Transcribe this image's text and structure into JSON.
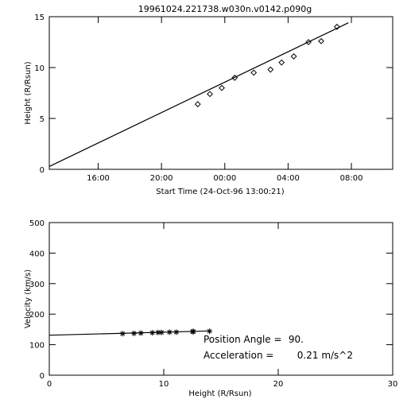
{
  "chart_data": [
    {
      "type": "scatter",
      "title": "19961024.221738.w030n.v0142.p090g",
      "xlabel": "Start Time (24-Oct-96 13:00:21)",
      "ylabel": "Height (R/Rsun)",
      "ylim": [
        0,
        15
      ],
      "yticks": [
        0,
        5,
        10,
        15
      ],
      "xlim_hours_after_start": [
        -0.1,
        21.6
      ],
      "xtick_labels": [
        "16:00",
        "20:00",
        "00:00",
        "04:00",
        "08:00"
      ],
      "xtick_hours_after_start": [
        2.99,
        6.99,
        10.99,
        14.99,
        18.99
      ],
      "points": [
        {
          "t": "24-Oct-96 22:17",
          "x": 9.28,
          "y": 6.4
        },
        {
          "t": "24-Oct-96 23:03",
          "x": 10.05,
          "y": 7.4
        },
        {
          "t": "24-Oct-96 23:48",
          "x": 10.8,
          "y": 8.0
        },
        {
          "t": "25-Oct-96 00:37",
          "x": 11.62,
          "y": 9.0
        },
        {
          "t": "25-Oct-96 01:49",
          "x": 12.82,
          "y": 9.5
        },
        {
          "t": "25-Oct-96 02:53",
          "x": 13.88,
          "y": 9.8
        },
        {
          "t": "25-Oct-96 03:35",
          "x": 14.58,
          "y": 10.5
        },
        {
          "t": "25-Oct-96 04:21",
          "x": 15.35,
          "y": 11.1
        },
        {
          "t": "25-Oct-96 05:17",
          "x": 16.28,
          "y": 12.5
        },
        {
          "t": "25-Oct-96 06:05",
          "x": 17.08,
          "y": 12.6
        },
        {
          "t": "25-Oct-96 07:05",
          "x": 18.08,
          "y": 14.0
        }
      ],
      "fit_line": [
        {
          "x": -0.1,
          "y": 0.28
        },
        {
          "x": 18.8,
          "y": 14.4
        }
      ]
    },
    {
      "type": "scatter",
      "xlabel": "Height (R/Rsun)",
      "ylabel": "Velocity (km/s)",
      "xlim": [
        0,
        30
      ],
      "ylim": [
        0,
        500
      ],
      "xticks": [
        0,
        10,
        20,
        30
      ],
      "yticks": [
        0,
        100,
        200,
        300,
        400,
        500
      ],
      "points": [
        {
          "x": 6.4,
          "y": 136
        },
        {
          "x": 7.4,
          "y": 137
        },
        {
          "x": 8.0,
          "y": 138
        },
        {
          "x": 9.0,
          "y": 139
        },
        {
          "x": 9.5,
          "y": 140
        },
        {
          "x": 9.8,
          "y": 140
        },
        {
          "x": 10.5,
          "y": 141
        },
        {
          "x": 11.1,
          "y": 141
        },
        {
          "x": 12.5,
          "y": 143
        },
        {
          "x": 12.6,
          "y": 143
        },
        {
          "x": 14.0,
          "y": 144
        }
      ],
      "fit_line": [
        {
          "x": 0,
          "y": 131
        },
        {
          "x": 14.0,
          "y": 145
        }
      ],
      "annotations": [
        {
          "label": "Position Angle =",
          "value": "90."
        },
        {
          "label": "Acceleration =",
          "value": "0.21 m/s^2"
        }
      ]
    }
  ]
}
